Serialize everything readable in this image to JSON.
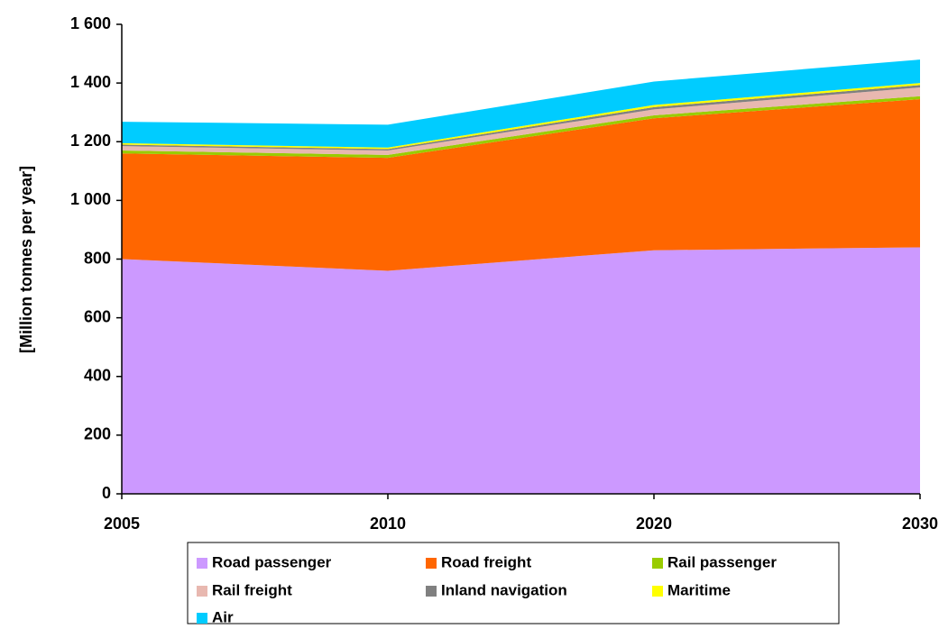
{
  "chart_data": {
    "type": "stacked_area",
    "y_label": "[Million tonnes per year]",
    "categories": [
      "2005",
      "2010",
      "2020",
      "2030"
    ],
    "ylim": [
      0,
      1600
    ],
    "yticks": [
      0,
      200,
      400,
      600,
      800,
      {
        "value": 1000,
        "label": "1 000"
      },
      {
        "value": 1200,
        "label": "1 200"
      },
      {
        "value": 1400,
        "label": "1 400"
      },
      {
        "value": 1600,
        "label": "1 600"
      }
    ],
    "series": [
      {
        "name": "Road passenger",
        "color": "#cc99ff",
        "values": [
          800,
          760,
          830,
          840
        ]
      },
      {
        "name": "Road freight",
        "color": "#ff6600",
        "values": [
          360,
          385,
          450,
          505
        ]
      },
      {
        "name": "Rail passenger",
        "color": "#99cc00",
        "values": [
          10,
          10,
          10,
          10
        ]
      },
      {
        "name": "Rail freight",
        "color": "#e8b8b0",
        "values": [
          15,
          15,
          20,
          30
        ]
      },
      {
        "name": "Inland navigation",
        "color": "#808080",
        "values": [
          5,
          5,
          8,
          8
        ]
      },
      {
        "name": "Maritime",
        "color": "#ffff00",
        "values": [
          5,
          5,
          7,
          7
        ]
      },
      {
        "name": "Air",
        "color": "#00ccff",
        "values": [
          73,
          78,
          80,
          80
        ]
      }
    ]
  }
}
